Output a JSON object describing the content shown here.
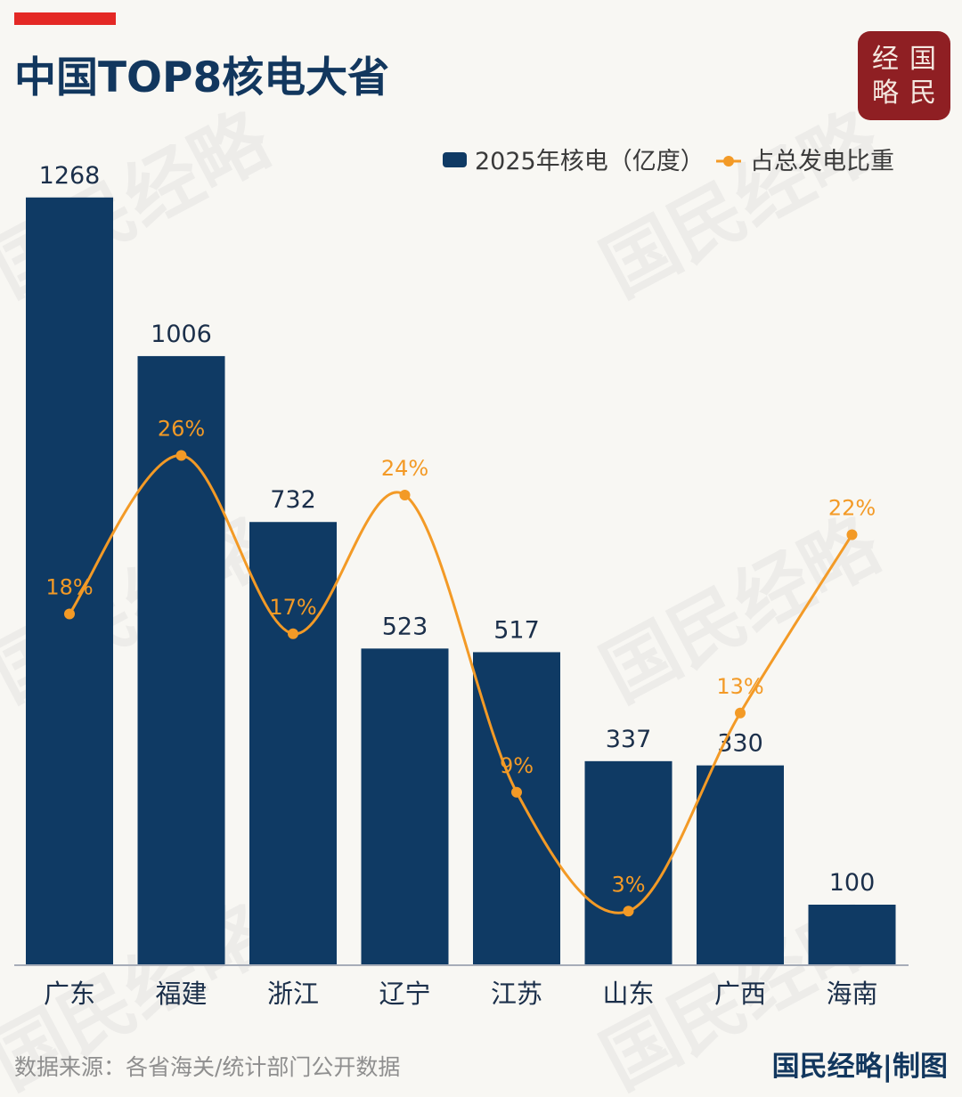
{
  "header": {
    "title": "中国TOP8核电大省"
  },
  "logo": {
    "chars": [
      "经",
      "国",
      "略",
      "民"
    ]
  },
  "watermark": {
    "text": "国民经略"
  },
  "chart_data": {
    "type": "bar",
    "categories": [
      "广东",
      "福建",
      "浙江",
      "辽宁",
      "江苏",
      "山东",
      "广西",
      "海南"
    ],
    "series": [
      {
        "name": "2025年核电（亿度）",
        "type": "bar",
        "values": [
          1268,
          1006,
          732,
          523,
          517,
          337,
          330,
          100
        ],
        "labels": [
          "1268",
          "1006",
          "732",
          "523",
          "517",
          "337",
          "330",
          "100"
        ]
      },
      {
        "name": "占总发电比重",
        "type": "line",
        "values": [
          18,
          26,
          17,
          24,
          9,
          3,
          13,
          22
        ],
        "labels": [
          "18%",
          "26%",
          "17%",
          "24%",
          "9%",
          "3%",
          "13%",
          "22%"
        ]
      }
    ],
    "legend_position": "top-right",
    "colors": {
      "bar": "#0f3a64",
      "line": "#f39a26",
      "axis": "#a7adb8"
    }
  },
  "footer": {
    "source": "数据来源：各省海关/统计部门公开数据",
    "credit": "国民经略|制图"
  }
}
